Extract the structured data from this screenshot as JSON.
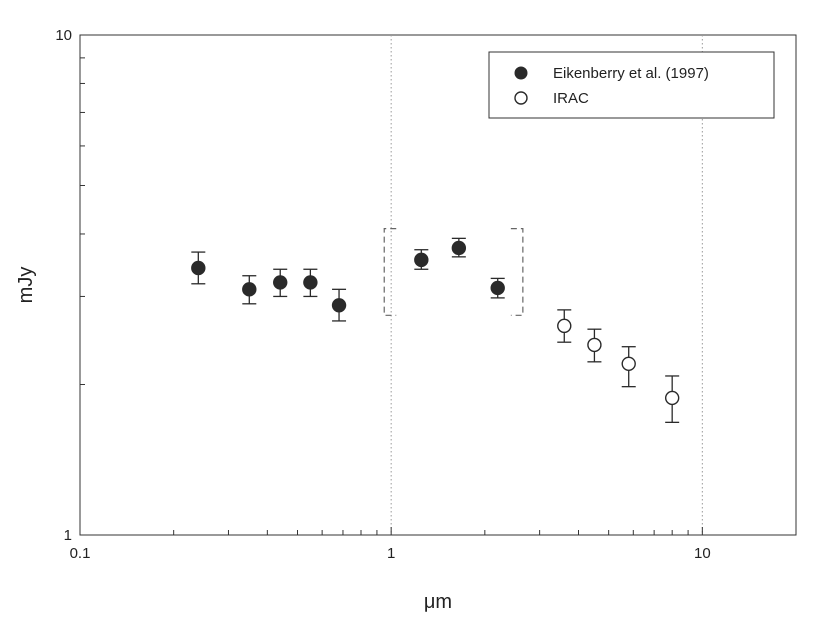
{
  "chart_data": {
    "type": "scatter",
    "title": "",
    "xlabel": "μm",
    "ylabel": "mJy",
    "xscale": "log",
    "yscale": "log",
    "xlim": [
      0.1,
      20
    ],
    "ylim": [
      1,
      10
    ],
    "x_ticks": [
      {
        "value": 0.1,
        "label": "0.1"
      },
      {
        "value": 1,
        "label": "1"
      },
      {
        "value": 10,
        "label": "10"
      }
    ],
    "y_ticks": [
      {
        "value": 1,
        "label": "1"
      },
      {
        "value": 10,
        "label": "10"
      }
    ],
    "vertical_reference_lines": [
      1,
      10
    ],
    "grid": false,
    "legend_position": "top-right",
    "series": [
      {
        "name": "Eikenberry et al. (1997)",
        "marker": "filled-circle",
        "color": "#2a2a2a",
        "points": [
          {
            "x": 0.24,
            "y": 3.42,
            "err_low": 3.18,
            "err_high": 3.68
          },
          {
            "x": 0.35,
            "y": 3.1,
            "err_low": 2.9,
            "err_high": 3.3
          },
          {
            "x": 0.44,
            "y": 3.2,
            "err_low": 3.0,
            "err_high": 3.4
          },
          {
            "x": 0.55,
            "y": 3.2,
            "err_low": 3.0,
            "err_high": 3.4
          },
          {
            "x": 0.68,
            "y": 2.88,
            "err_low": 2.68,
            "err_high": 3.1
          },
          {
            "x": 1.25,
            "y": 3.55,
            "err_low": 3.4,
            "err_high": 3.72
          },
          {
            "x": 1.65,
            "y": 3.75,
            "err_low": 3.6,
            "err_high": 3.92
          },
          {
            "x": 2.2,
            "y": 3.12,
            "err_low": 2.98,
            "err_high": 3.26
          }
        ]
      },
      {
        "name": "IRAC",
        "marker": "open-circle",
        "color": "#2a2a2a",
        "points": [
          {
            "x": 3.6,
            "y": 2.62,
            "err_low": 2.43,
            "err_high": 2.82
          },
          {
            "x": 4.5,
            "y": 2.4,
            "err_low": 2.22,
            "err_high": 2.58
          },
          {
            "x": 5.8,
            "y": 2.2,
            "err_low": 1.98,
            "err_high": 2.38
          },
          {
            "x": 8.0,
            "y": 1.88,
            "err_low": 1.68,
            "err_high": 2.08
          }
        ]
      }
    ],
    "bracket": {
      "x_left": 0.95,
      "x_right": 2.65,
      "y_low": 2.75,
      "y_high": 4.1
    }
  }
}
